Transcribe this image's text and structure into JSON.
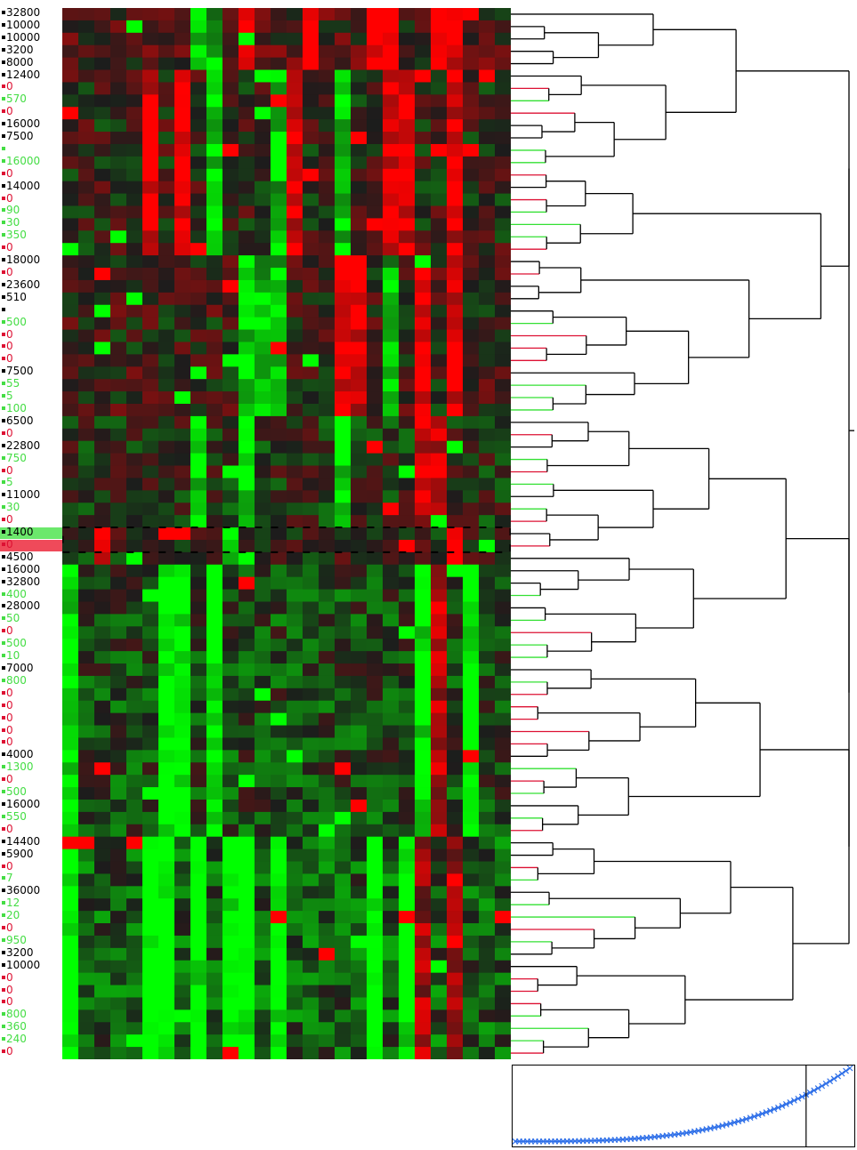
{
  "palette": {
    "high": "#ff0000",
    "low": "#00ff00",
    "mid": "#1c1c1c",
    "tree_line": "#000000",
    "tree_green": "#33e033",
    "tree_red": "#dd1133",
    "score_line": "#2e6fe8"
  },
  "heatmap": {
    "columns": 28,
    "selected_row_index": 43,
    "rows": [
      {
        "label": "32800",
        "class": "black"
      },
      {
        "label": "10000",
        "class": "black"
      },
      {
        "label": "10000",
        "class": "black"
      },
      {
        "label": "3200",
        "class": "black"
      },
      {
        "label": "8000",
        "class": "black"
      },
      {
        "label": "12400",
        "class": "black"
      },
      {
        "label": "0",
        "class": "red"
      },
      {
        "label": "570",
        "class": "green"
      },
      {
        "label": "0",
        "class": "red"
      },
      {
        "label": "16000",
        "class": "black"
      },
      {
        "label": "7500",
        "class": "black"
      },
      {
        "label": "",
        "class": "green"
      },
      {
        "label": "16000",
        "class": "green"
      },
      {
        "label": "0",
        "class": "red"
      },
      {
        "label": "14000",
        "class": "black"
      },
      {
        "label": "0",
        "class": "red"
      },
      {
        "label": "90",
        "class": "green"
      },
      {
        "label": "30",
        "class": "green"
      },
      {
        "label": "350",
        "class": "green"
      },
      {
        "label": "0",
        "class": "red"
      },
      {
        "label": "18000",
        "class": "black"
      },
      {
        "label": "0",
        "class": "red"
      },
      {
        "label": "23600",
        "class": "black"
      },
      {
        "label": "510",
        "class": "black"
      },
      {
        "label": "",
        "class": "black"
      },
      {
        "label": "500",
        "class": "green"
      },
      {
        "label": "0",
        "class": "red"
      },
      {
        "label": "0",
        "class": "red"
      },
      {
        "label": "0",
        "class": "red"
      },
      {
        "label": "7500",
        "class": "black"
      },
      {
        "label": "55",
        "class": "green"
      },
      {
        "label": "5",
        "class": "green"
      },
      {
        "label": "100",
        "class": "green"
      },
      {
        "label": "6500",
        "class": "black"
      },
      {
        "label": "0",
        "class": "red"
      },
      {
        "label": "22800",
        "class": "black"
      },
      {
        "label": "750",
        "class": "green"
      },
      {
        "label": "0",
        "class": "red"
      },
      {
        "label": "5",
        "class": "green"
      },
      {
        "label": "11000",
        "class": "black"
      },
      {
        "label": "30",
        "class": "green"
      },
      {
        "label": "0",
        "class": "red"
      },
      {
        "label": "1400",
        "class": "black"
      },
      {
        "label": "0",
        "class": "red"
      },
      {
        "label": "4500",
        "class": "black"
      },
      {
        "label": "16000",
        "class": "black"
      },
      {
        "label": "32800",
        "class": "black"
      },
      {
        "label": "400",
        "class": "green"
      },
      {
        "label": "28000",
        "class": "black"
      },
      {
        "label": "50",
        "class": "green"
      },
      {
        "label": "0",
        "class": "red"
      },
      {
        "label": "500",
        "class": "green"
      },
      {
        "label": "10",
        "class": "green"
      },
      {
        "label": "7000",
        "class": "black"
      },
      {
        "label": "800",
        "class": "green"
      },
      {
        "label": "0",
        "class": "red"
      },
      {
        "label": "0",
        "class": "red"
      },
      {
        "label": "0",
        "class": "red"
      },
      {
        "label": "0",
        "class": "red"
      },
      {
        "label": "0",
        "class": "red"
      },
      {
        "label": "4000",
        "class": "black"
      },
      {
        "label": "1300",
        "class": "green"
      },
      {
        "label": "0",
        "class": "red"
      },
      {
        "label": "500",
        "class": "green"
      },
      {
        "label": "16000",
        "class": "black"
      },
      {
        "label": "550",
        "class": "green"
      },
      {
        "label": "0",
        "class": "red"
      },
      {
        "label": "14400",
        "class": "black"
      },
      {
        "label": "5900",
        "class": "black"
      },
      {
        "label": "0",
        "class": "red"
      },
      {
        "label": "7",
        "class": "green"
      },
      {
        "label": "36000",
        "class": "black"
      },
      {
        "label": "12",
        "class": "green"
      },
      {
        "label": "20",
        "class": "green"
      },
      {
        "label": "0",
        "class": "red"
      },
      {
        "label": "950",
        "class": "green"
      },
      {
        "label": "3200",
        "class": "black"
      },
      {
        "label": "10000",
        "class": "black"
      },
      {
        "label": "0",
        "class": "red"
      },
      {
        "label": "0",
        "class": "red"
      },
      {
        "label": "0",
        "class": "red"
      },
      {
        "label": "800",
        "class": "green"
      },
      {
        "label": "360",
        "class": "green"
      },
      {
        "label": "240",
        "class": "green"
      },
      {
        "label": "0",
        "class": "red"
      }
    ]
  },
  "chart_data": {
    "type": "heatmap",
    "value_range": [
      -1,
      1
    ],
    "clusters": [
      {
        "rows": [
          0,
          5
        ],
        "bias": 0.35,
        "hot_cols": [
          11,
          15,
          19,
          20,
          23,
          24
        ],
        "cool_cols": [
          8,
          9
        ]
      },
      {
        "rows": [
          5,
          20
        ],
        "bias": 0.1,
        "hot_cols": [
          5,
          7,
          14,
          20,
          21,
          24
        ],
        "cool_cols": [
          9,
          13,
          17
        ]
      },
      {
        "rows": [
          20,
          33
        ],
        "bias": 0.15,
        "hot_cols": [
          17,
          18,
          22,
          24
        ],
        "cool_cols": [
          11,
          12,
          13,
          20
        ]
      },
      {
        "rows": [
          33,
          42
        ],
        "bias": -0.1,
        "hot_cols": [
          22,
          23
        ],
        "cool_cols": [
          8,
          11,
          17
        ]
      },
      {
        "rows": [
          42,
          45
        ],
        "bias": 0.0,
        "hot_cols": [
          2,
          24
        ],
        "cool_cols": [
          10
        ]
      },
      {
        "rows": [
          45,
          67
        ],
        "bias": -0.35,
        "hot_cols": [
          23
        ],
        "cool_cols": [
          0,
          6,
          7,
          9,
          22,
          25
        ]
      },
      {
        "rows": [
          67,
          85
        ],
        "bias": -0.55,
        "hot_cols": [
          22,
          24
        ],
        "cool_cols": [
          0,
          5,
          6,
          8,
          10,
          11,
          13,
          19,
          21
        ]
      }
    ],
    "dendrogram_order": [
      0,
      1,
      2,
      3,
      4,
      5,
      6,
      7,
      8,
      9,
      10,
      11,
      12,
      13,
      14,
      15,
      16,
      17,
      18,
      19,
      20,
      21,
      22,
      23,
      24,
      25,
      26,
      27,
      28,
      29,
      30,
      31,
      32,
      33,
      34,
      35,
      36,
      37,
      38,
      39,
      40,
      41,
      42,
      43,
      44,
      45,
      46,
      47,
      48,
      49,
      50,
      51,
      52,
      53,
      54,
      55,
      56,
      57,
      58,
      59,
      60,
      61,
      62,
      63,
      64,
      65,
      66,
      67,
      68,
      69,
      70,
      71,
      72,
      73,
      74,
      75,
      76,
      77,
      78,
      79,
      80,
      81,
      82,
      83,
      84
    ],
    "score_curve": {
      "type": "scatter",
      "points": 85,
      "threshold_index": 73,
      "y_start": 0.02,
      "y_end": 1.0
    }
  }
}
